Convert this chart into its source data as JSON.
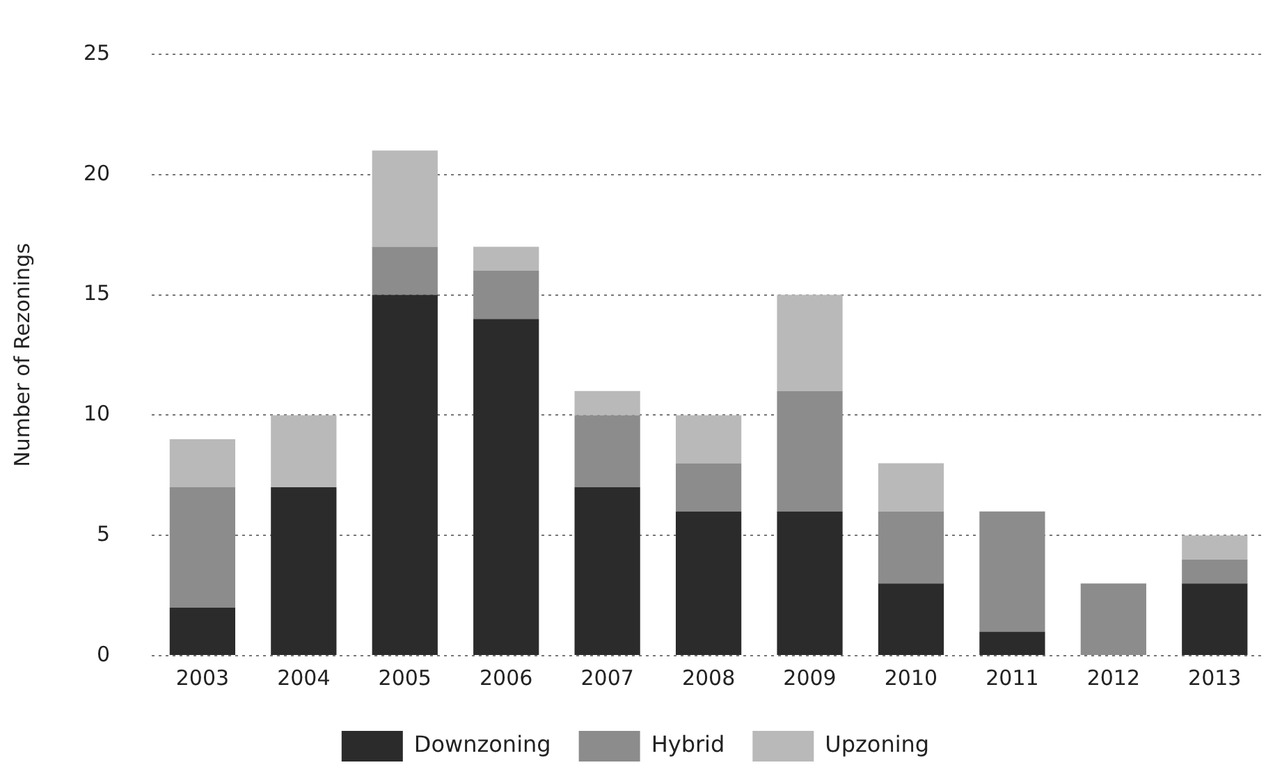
{
  "chart_data": {
    "type": "bar",
    "stacked": true,
    "ylabel": "Number of Rezonings",
    "categories": [
      "2003",
      "2004",
      "2005",
      "2006",
      "2007",
      "2008",
      "2009",
      "2010",
      "2011",
      "2012",
      "2013"
    ],
    "series": [
      {
        "name": "Downzoning",
        "color": "#2b2b2b",
        "values": [
          2,
          7,
          15,
          14,
          7,
          6,
          6,
          3,
          1,
          0,
          3
        ]
      },
      {
        "name": "Hybrid",
        "color": "#8c8c8c",
        "values": [
          5,
          0,
          2,
          2,
          3,
          2,
          5,
          3,
          5,
          3,
          1
        ]
      },
      {
        "name": "Upzoning",
        "color": "#b9b9b9",
        "values": [
          2,
          3,
          4,
          1,
          1,
          2,
          4,
          2,
          0,
          0,
          1
        ]
      }
    ],
    "ylim": [
      0,
      25
    ],
    "yticks": [
      0,
      5,
      10,
      15,
      20,
      25
    ],
    "grid": "y",
    "legend": "bottom"
  }
}
